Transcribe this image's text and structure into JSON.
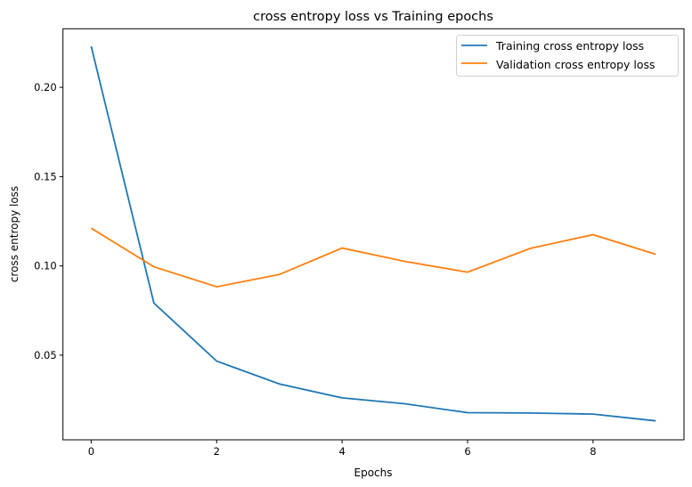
{
  "chart_data": {
    "type": "line",
    "title": "cross entropy loss vs Training epochs",
    "xlabel": "Epochs",
    "ylabel": "cross entropy loss",
    "x": [
      0,
      1,
      2,
      3,
      4,
      5,
      6,
      7,
      8,
      9
    ],
    "xlim": [
      -0.45,
      9.45
    ],
    "ylim": [
      0.0026,
      0.2328
    ],
    "xticks": [
      0,
      2,
      4,
      6,
      8
    ],
    "xtick_labels": [
      "0",
      "2",
      "4",
      "6",
      "8"
    ],
    "yticks": [
      0.05,
      0.1,
      0.15,
      0.2
    ],
    "ytick_labels": [
      "0.05",
      "0.10",
      "0.15",
      "0.20"
    ],
    "grid": false,
    "legend_position": "top-right",
    "series": [
      {
        "name": "Training cross entropy loss",
        "color": "#1f77b4",
        "values": [
          0.223,
          0.0792,
          0.0467,
          0.0339,
          0.0261,
          0.0228,
          0.0178,
          0.0176,
          0.017,
          0.0132
        ]
      },
      {
        "name": "Validation cross entropy loss",
        "color": "#ff7f0e",
        "values": [
          0.1211,
          0.0995,
          0.0883,
          0.0952,
          0.11,
          0.1025,
          0.0965,
          0.1098,
          0.1175,
          0.1065
        ]
      }
    ]
  }
}
